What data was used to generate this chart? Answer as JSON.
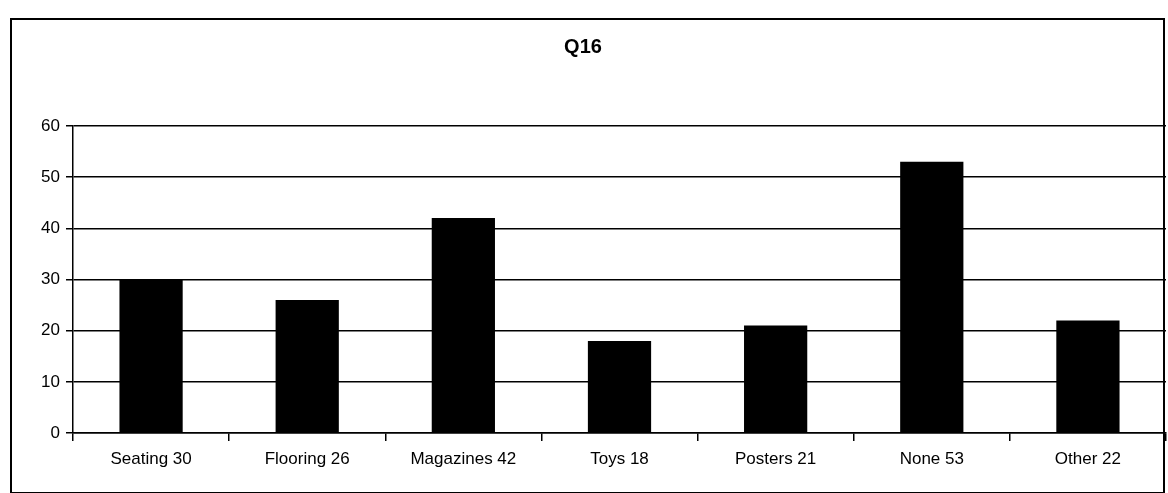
{
  "chart_data": {
    "type": "bar",
    "title": "Q16",
    "categories": [
      "Seating 30",
      "Flooring 26",
      "Magazines 42",
      "Toys 18",
      "Posters 21",
      "None 53",
      "Other 22"
    ],
    "values": [
      30,
      26,
      42,
      18,
      21,
      53,
      22
    ],
    "color": "#000000",
    "ylim": [
      0,
      60
    ],
    "yticks": [
      0,
      10,
      20,
      30,
      40,
      50,
      60
    ],
    "grid": "y"
  }
}
